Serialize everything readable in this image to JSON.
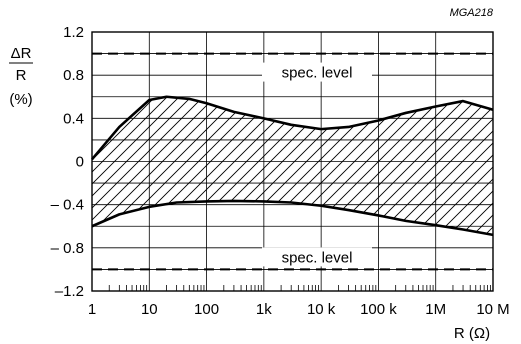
{
  "chart_data": {
    "type": "line",
    "figure_code": "MGA218",
    "ylabel_lines": [
      "ΔR",
      "R",
      "(%)"
    ],
    "xlabel": "R (Ω)",
    "x_scale": "log",
    "xlim": [
      1,
      10000000
    ],
    "ylim": [
      -1.2,
      1.2
    ],
    "x_ticks": [
      {
        "value": 1,
        "label": "1"
      },
      {
        "value": 10,
        "label": "10"
      },
      {
        "value": 100,
        "label": "100"
      },
      {
        "value": 1000,
        "label": "1k"
      },
      {
        "value": 10000,
        "label": "10 k"
      },
      {
        "value": 100000,
        "label": "100 k"
      },
      {
        "value": 1000000,
        "label": "1M"
      },
      {
        "value": 10000000,
        "label": "10 M"
      }
    ],
    "y_ticks": [
      {
        "value": 1.2,
        "label": "1.2"
      },
      {
        "value": 0.8,
        "label": "0.8"
      },
      {
        "value": 0.4,
        "label": "0.4"
      },
      {
        "value": 0,
        "label": "0"
      },
      {
        "value": -0.4,
        "label": "– 0.4"
      },
      {
        "value": -0.8,
        "label": "– 0.8"
      },
      {
        "value": -1.2,
        "label": "–1.2"
      }
    ],
    "grid": true,
    "spec_levels": [
      {
        "value": 1.0,
        "label": "spec. level"
      },
      {
        "value": -1.0,
        "label": "spec. level"
      }
    ],
    "band": {
      "upper": {
        "x": [
          1,
          3,
          10,
          20,
          50,
          100,
          300,
          1000,
          3000,
          10000,
          30000,
          100000,
          300000,
          1000000,
          3000000,
          10000000
        ],
        "y": [
          0.02,
          0.32,
          0.57,
          0.6,
          0.58,
          0.54,
          0.46,
          0.4,
          0.34,
          0.3,
          0.32,
          0.38,
          0.45,
          0.51,
          0.56,
          0.48
        ]
      },
      "lower": {
        "x": [
          1,
          3,
          10,
          30,
          100,
          300,
          1000,
          3000,
          10000,
          30000,
          100000,
          300000,
          1000000,
          3000000,
          10000000
        ],
        "y": [
          -0.6,
          -0.49,
          -0.42,
          -0.38,
          -0.37,
          -0.365,
          -0.37,
          -0.38,
          -0.41,
          -0.45,
          -0.5,
          -0.55,
          -0.59,
          -0.63,
          -0.68
        ]
      }
    }
  }
}
